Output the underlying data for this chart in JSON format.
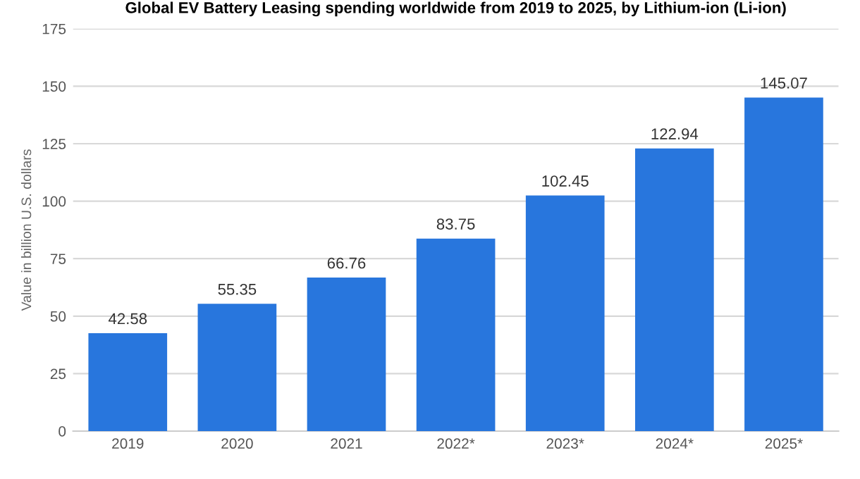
{
  "chart_data": {
    "type": "bar",
    "title": "Global EV Battery Leasing spending worldwide from 2019 to 2025, by Lithium-ion (Li-ion)",
    "ylabel": "Value in billion U.S. dollars",
    "categories": [
      "2019",
      "2020",
      "2021",
      "2022*",
      "2023*",
      "2024*",
      "2025*"
    ],
    "values": [
      42.58,
      55.35,
      66.76,
      83.75,
      102.45,
      122.94,
      145.07
    ],
    "color": "#2876dd",
    "ylim": [
      0,
      175
    ],
    "yticks": [
      0,
      25,
      50,
      75,
      100,
      125,
      150,
      175
    ],
    "grid": "y",
    "data_labels": true
  }
}
